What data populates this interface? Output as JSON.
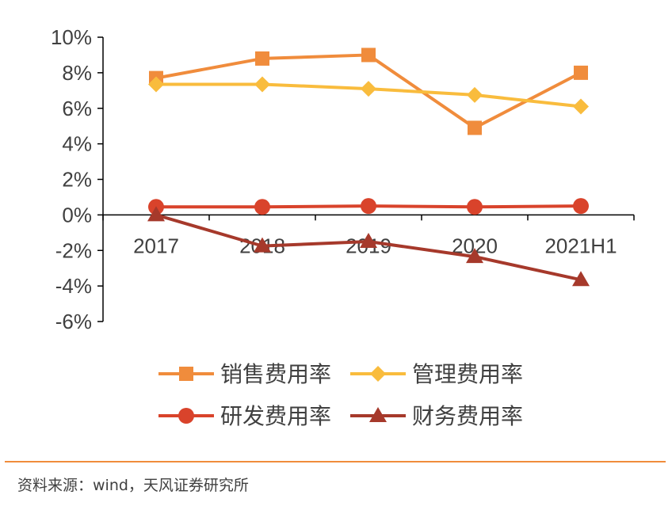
{
  "chart_data": {
    "type": "line",
    "categories": [
      "2017",
      "2018",
      "2019",
      "2020",
      "2021H1"
    ],
    "y_ticks": [
      "10%",
      "8%",
      "6%",
      "4%",
      "2%",
      "0%",
      "-2%",
      "-4%",
      "-6%"
    ],
    "ylim": [
      -6,
      10
    ],
    "grid": false,
    "legend_position": "bottom",
    "series": [
      {
        "name": "销售费用率",
        "values": [
          7.7,
          8.8,
          9.0,
          4.9,
          8.0
        ],
        "color": "#F08C3C",
        "marker": "square"
      },
      {
        "name": "管理费用率",
        "values": [
          7.35,
          7.35,
          7.1,
          6.75,
          6.1
        ],
        "color": "#F9BC3D",
        "marker": "diamond"
      },
      {
        "name": "研发费用率",
        "values": [
          0.45,
          0.45,
          0.5,
          0.45,
          0.5
        ],
        "color": "#D9432B",
        "marker": "circle"
      },
      {
        "name": "财务费用率",
        "values": [
          0.0,
          -1.75,
          -1.5,
          -2.35,
          -3.65
        ],
        "color": "#A6392B",
        "marker": "triangle"
      }
    ]
  },
  "source_note": "资料来源：wind，天风证券研究所",
  "colors": {
    "divider": "#F08C3C",
    "axis": "#000000",
    "text": "#404040"
  }
}
